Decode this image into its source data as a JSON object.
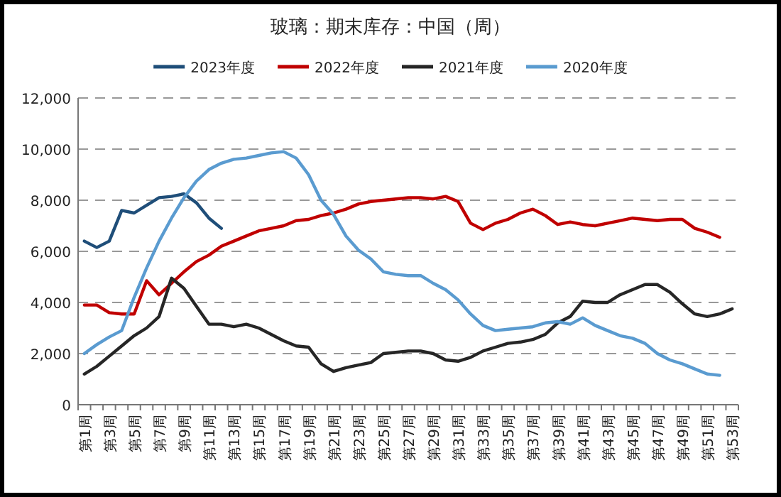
{
  "chart_data": {
    "type": "line",
    "title": "玻璃：期末库存：中国（周）",
    "categories": [
      "第1周",
      null,
      "第3周",
      null,
      "第5周",
      null,
      "第7周",
      null,
      "第9周",
      null,
      "第11周",
      null,
      "第13周",
      null,
      "第15周",
      null,
      "第17周",
      null,
      "第19周",
      null,
      "第21周",
      null,
      "第23周",
      null,
      "第25周",
      null,
      "第27周",
      null,
      "第29周",
      null,
      "第31周",
      null,
      "第33周",
      null,
      "第35周",
      null,
      "第37周",
      null,
      "第39周",
      null,
      "第41周",
      null,
      "第43周",
      null,
      "第45周",
      null,
      "第47周",
      null,
      "第49周",
      null,
      "第51周",
      null,
      "第53周"
    ],
    "ylim": [
      0,
      12000
    ],
    "yticks": [
      0,
      {
        "value": 2000,
        "label": "2,000"
      },
      {
        "value": 4000,
        "label": "4,000"
      },
      {
        "value": 6000,
        "label": "6,000"
      },
      {
        "value": 8000,
        "label": "8,000"
      },
      {
        "value": 10000,
        "label": "10,000"
      },
      {
        "value": 12000,
        "label": "12,000"
      }
    ],
    "grid": "y",
    "legend": "top",
    "series": [
      {
        "name": "2023年度",
        "color": "#1f4e79",
        "values": [
          6400,
          6150,
          6400,
          7600,
          7500,
          7800,
          8100,
          8150,
          8250,
          7900,
          7300,
          6900,
          null,
          null,
          null,
          null,
          null,
          null,
          null,
          null,
          null,
          null,
          null,
          null,
          null,
          null,
          null,
          null,
          null,
          null,
          null,
          null,
          null,
          null,
          null,
          null,
          null,
          null,
          null,
          null,
          null,
          null,
          null,
          null,
          null,
          null,
          null,
          null,
          null,
          null,
          null,
          null,
          null
        ]
      },
      {
        "name": "2022年度",
        "color": "#c00000",
        "values": [
          3900,
          3900,
          3600,
          3550,
          3550,
          4850,
          4300,
          4750,
          5200,
          5600,
          5850,
          6200,
          6400,
          6600,
          6800,
          6900,
          7000,
          7200,
          7250,
          7400,
          7500,
          7650,
          7850,
          7950,
          8000,
          8050,
          8100,
          8100,
          8050,
          8150,
          7950,
          7100,
          6850,
          7100,
          7250,
          7500,
          7650,
          7400,
          7050,
          7150,
          7050,
          7000,
          7100,
          7200,
          7300,
          7250,
          7200,
          7250,
          7250,
          6900,
          6750,
          6550,
          null
        ]
      },
      {
        "name": "2021年度",
        "color": "#262626",
        "values": [
          1200,
          1500,
          1900,
          2300,
          2700,
          3000,
          3450,
          4950,
          4550,
          3850,
          3150,
          3150,
          3050,
          3150,
          3000,
          2750,
          2500,
          2300,
          2250,
          1600,
          1300,
          1450,
          1550,
          1650,
          2000,
          2050,
          2100,
          2100,
          2000,
          1750,
          1700,
          1850,
          2100,
          2250,
          2400,
          2450,
          2550,
          2750,
          3200,
          3450,
          4050,
          4000,
          4000,
          4300,
          4500,
          4700,
          4700,
          4400,
          3950,
          3550,
          3450,
          3550,
          3750
        ]
      },
      {
        "name": "2020年度",
        "color": "#5a9bd0",
        "values": [
          2000,
          2350,
          2650,
          2900,
          4200,
          5350,
          6400,
          7300,
          8100,
          8750,
          9200,
          9450,
          9600,
          9650,
          9750,
          9850,
          9900,
          9650,
          9000,
          8000,
          7450,
          6600,
          6050,
          5700,
          5200,
          5100,
          5050,
          5050,
          4750,
          4500,
          4100,
          3550,
          3100,
          2900,
          2950,
          3000,
          3050,
          3200,
          3250,
          3150,
          3400,
          3100,
          2900,
          2700,
          2600,
          2400,
          2000,
          1750,
          1600,
          1400,
          1200,
          1150,
          null
        ]
      }
    ]
  }
}
